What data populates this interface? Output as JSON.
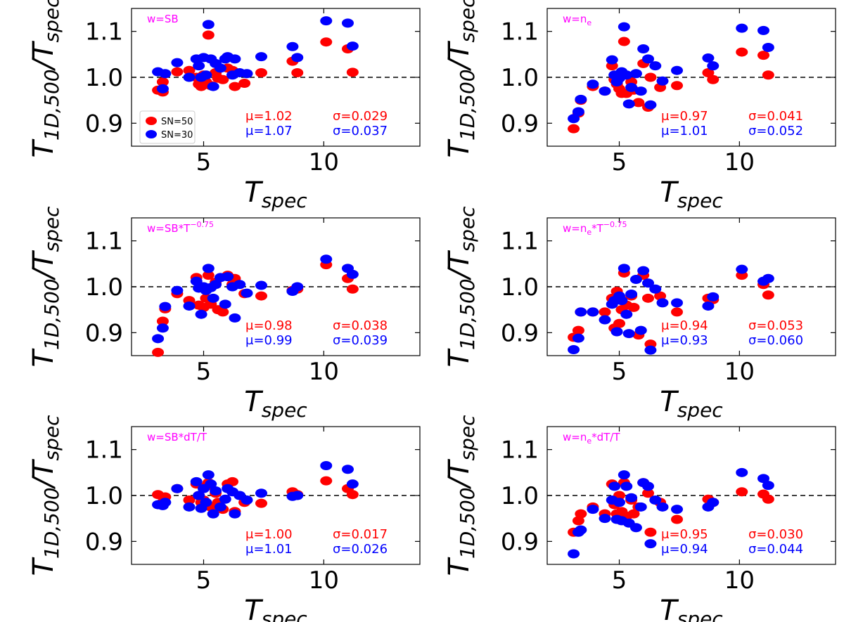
{
  "figure": {
    "xlabel_main": "T",
    "xlabel_sub": "spec",
    "ylabel_main": "T",
    "ylabel_sub1": "1D,500",
    "ylabel_slash": "/T",
    "ylabel_sub2": "spec"
  },
  "legend": {
    "entries": [
      {
        "label": "SN=50",
        "color": "#ff0000"
      },
      {
        "label": "SN=30",
        "color": "#0000ff"
      }
    ]
  },
  "colors": {
    "sn50": "#ff0000",
    "sn30": "#0000ff",
    "weight": "#ff00ff",
    "reference_line": "#000000"
  },
  "chart_data": [
    {
      "type": "scatter",
      "weight_main": "w=SB",
      "weight_sup": "",
      "weight_tail": "",
      "xlim": [
        2,
        14
      ],
      "ylim": [
        0.85,
        1.15
      ],
      "xticks": [
        5,
        10
      ],
      "xtick_labels": [
        "5",
        "10"
      ],
      "yticks": [
        0.9,
        1.0,
        1.1
      ],
      "ytick_labels": [
        "0.9",
        "1.0",
        "1.1"
      ],
      "reference_y": 1.0,
      "stats": {
        "sn50": {
          "mu": "μ=1.02",
          "sigma": "σ=0.029"
        },
        "sn30": {
          "mu": "μ=1.07",
          "sigma": "σ=0.037"
        }
      },
      "has_legend": true,
      "series": [
        {
          "name": "SN=50",
          "x": [
            3.1,
            3.3,
            3.3,
            3.9,
            4.4,
            4.7,
            4.8,
            4.9,
            5.0,
            5.1,
            5.2,
            5.3,
            5.5,
            5.6,
            5.8,
            6.0,
            6.2,
            6.3,
            6.7,
            7.4,
            8.7,
            8.9,
            10.1,
            11.0,
            11.2
          ],
          "y": [
            0.972,
            0.968,
            0.99,
            1.012,
            1.015,
            1.0,
            0.985,
            0.98,
            1.005,
            0.99,
            1.092,
            0.982,
            1.01,
            0.998,
            0.995,
            1.02,
            1.015,
            0.98,
            0.987,
            1.01,
            1.035,
            1.01,
            1.077,
            1.062,
            1.011
          ]
        },
        {
          "name": "SN=30",
          "x": [
            3.1,
            3.3,
            3.4,
            3.9,
            4.4,
            4.7,
            4.8,
            4.9,
            5.0,
            5.1,
            5.2,
            5.3,
            5.4,
            5.5,
            5.7,
            5.9,
            6.0,
            6.2,
            6.3,
            6.5,
            6.8,
            7.4,
            8.7,
            8.9,
            10.1,
            11.0,
            11.2
          ],
          "y": [
            1.012,
            0.975,
            1.008,
            1.032,
            1.0,
            1.04,
            1.025,
            1.0,
            1.043,
            1.005,
            1.115,
            1.04,
            0.98,
            1.03,
            1.02,
            1.04,
            1.045,
            1.005,
            1.04,
            1.01,
            1.008,
            1.045,
            1.067,
            1.043,
            1.123,
            1.118,
            1.068
          ]
        }
      ]
    },
    {
      "type": "scatter",
      "weight_main": "w=n",
      "weight_sub": "e",
      "weight_sup": "",
      "weight_tail": "",
      "xlim": [
        2,
        14
      ],
      "ylim": [
        0.85,
        1.15
      ],
      "xticks": [
        5,
        10
      ],
      "xtick_labels": [
        "5",
        "10"
      ],
      "yticks": [
        0.9,
        1.0,
        1.1
      ],
      "ytick_labels": [
        "0.9",
        "1.0",
        "1.1"
      ],
      "reference_y": 1.0,
      "stats": {
        "sn50": {
          "mu": "μ=0.97",
          "sigma": "σ=0.041"
        },
        "sn30": {
          "mu": "μ=1.01",
          "sigma": "σ=0.052"
        }
      },
      "has_legend": false,
      "series": [
        {
          "name": "SN=50",
          "x": [
            3.1,
            3.3,
            3.4,
            3.9,
            4.4,
            4.7,
            4.8,
            4.9,
            5.0,
            5.1,
            5.2,
            5.3,
            5.5,
            5.6,
            5.8,
            6.0,
            6.2,
            6.3,
            6.7,
            7.4,
            8.7,
            8.9,
            10.1,
            11.0,
            11.2
          ],
          "y": [
            0.888,
            0.922,
            0.95,
            0.98,
            0.97,
            1.025,
            0.995,
            0.985,
            0.975,
            0.965,
            1.078,
            0.965,
            0.99,
            0.972,
            0.945,
            1.03,
            0.935,
            1.0,
            0.978,
            0.982,
            1.01,
            0.995,
            1.055,
            1.048,
            1.005
          ]
        },
        {
          "name": "SN=30",
          "x": [
            3.1,
            3.3,
            3.4,
            3.9,
            4.4,
            4.7,
            4.8,
            4.9,
            5.0,
            5.1,
            5.2,
            5.3,
            5.4,
            5.5,
            5.7,
            5.9,
            6.0,
            6.2,
            6.3,
            6.5,
            6.8,
            7.4,
            8.7,
            8.9,
            10.1,
            11.0,
            11.2
          ],
          "y": [
            0.91,
            0.925,
            0.952,
            0.985,
            0.97,
            1.038,
            1.005,
            0.99,
            0.998,
            1.012,
            1.11,
            1.005,
            0.942,
            0.978,
            1.008,
            0.97,
            1.062,
            1.04,
            0.94,
            1.025,
            0.992,
            1.015,
            1.042,
            1.025,
            1.107,
            1.102,
            1.065
          ]
        }
      ]
    },
    {
      "type": "scatter",
      "weight_main": "w=SB*T",
      "weight_sup": "−0.75",
      "weight_tail": "",
      "xlim": [
        2,
        14
      ],
      "ylim": [
        0.85,
        1.15
      ],
      "xticks": [
        5,
        10
      ],
      "xtick_labels": [
        "5",
        "10"
      ],
      "yticks": [
        0.9,
        1.0,
        1.1
      ],
      "ytick_labels": [
        "0.9",
        "1.0",
        "1.1"
      ],
      "reference_y": 1.0,
      "stats": {
        "sn50": {
          "mu": "μ=0.98",
          "sigma": "σ=0.038"
        },
        "sn30": {
          "mu": "μ=0.99",
          "sigma": "σ=0.039"
        }
      },
      "has_legend": false,
      "series": [
        {
          "name": "SN=50",
          "x": [
            3.1,
            3.3,
            3.4,
            3.9,
            4.4,
            4.7,
            4.8,
            4.9,
            5.0,
            5.1,
            5.2,
            5.3,
            5.5,
            5.6,
            5.8,
            6.0,
            6.2,
            6.3,
            6.7,
            7.4,
            8.7,
            8.9,
            10.1,
            11.0,
            11.2
          ],
          "y": [
            0.857,
            0.925,
            0.952,
            0.985,
            0.97,
            1.02,
            0.96,
            1.0,
            0.955,
            0.975,
            1.025,
            0.962,
            1.01,
            0.95,
            0.945,
            1.025,
            1.005,
            1.018,
            0.985,
            0.98,
            0.992,
            0.995,
            1.048,
            1.018,
            0.995
          ]
        },
        {
          "name": "SN=30",
          "x": [
            3.1,
            3.3,
            3.4,
            3.9,
            4.4,
            4.7,
            4.8,
            4.9,
            5.0,
            5.1,
            5.2,
            5.3,
            5.4,
            5.5,
            5.7,
            5.9,
            6.0,
            6.2,
            6.3,
            6.5,
            6.8,
            7.4,
            8.7,
            8.9,
            10.1,
            11.0,
            11.2
          ],
          "y": [
            0.887,
            0.91,
            0.957,
            0.992,
            0.958,
            1.012,
            0.997,
            0.94,
            1.0,
            0.992,
            1.04,
            0.998,
            0.975,
            1.005,
            1.02,
            0.962,
            1.022,
            1.0,
            0.932,
            1.005,
            0.986,
            1.003,
            0.99,
            1.0,
            1.06,
            1.04,
            1.027
          ]
        }
      ]
    },
    {
      "type": "scatter",
      "weight_main": "w=n",
      "weight_sub": "e",
      "weight_sup": "−0.75",
      "weight_tail": "*T",
      "xlim": [
        2,
        14
      ],
      "ylim": [
        0.85,
        1.15
      ],
      "xticks": [
        5,
        10
      ],
      "xtick_labels": [
        "5",
        "10"
      ],
      "yticks": [
        0.9,
        1.0,
        1.1
      ],
      "ytick_labels": [
        "0.9",
        "1.0",
        "1.1"
      ],
      "reference_y": 1.0,
      "stats": {
        "sn50": {
          "mu": "μ=0.94",
          "sigma": "σ=0.053"
        },
        "sn30": {
          "mu": "μ=0.93",
          "sigma": "σ=0.060"
        }
      },
      "has_legend": false,
      "series": [
        {
          "name": "SN=50",
          "x": [
            3.1,
            3.3,
            3.4,
            3.9,
            4.4,
            4.7,
            4.8,
            4.9,
            5.0,
            5.1,
            5.2,
            5.3,
            5.5,
            5.6,
            5.8,
            6.0,
            6.2,
            6.3,
            6.7,
            7.4,
            8.7,
            8.9,
            10.1,
            11.0,
            11.2
          ],
          "y": [
            0.89,
            0.905,
            0.945,
            0.945,
            0.945,
            0.975,
            0.91,
            0.99,
            0.92,
            0.95,
            1.03,
            0.96,
            0.98,
            0.955,
            0.895,
            1.025,
            0.975,
            0.875,
            0.98,
            0.945,
            0.975,
            0.972,
            1.025,
            1.005,
            0.982
          ]
        },
        {
          "name": "SN=30",
          "x": [
            3.1,
            3.3,
            3.4,
            3.9,
            4.4,
            4.7,
            4.8,
            4.9,
            5.0,
            5.1,
            5.2,
            5.3,
            5.4,
            5.5,
            5.7,
            5.9,
            6.0,
            6.2,
            6.3,
            6.5,
            6.8,
            7.4,
            8.7,
            8.9,
            10.1,
            11.0,
            11.2
          ],
          "y": [
            0.863,
            0.888,
            0.945,
            0.945,
            0.928,
            0.962,
            0.97,
            0.902,
            0.98,
            0.97,
            1.04,
            0.94,
            0.898,
            0.984,
            1.016,
            0.905,
            1.035,
            1.008,
            0.862,
            0.995,
            0.965,
            0.965,
            0.958,
            0.978,
            1.038,
            1.012,
            1.018
          ]
        }
      ]
    },
    {
      "type": "scatter",
      "weight_main": "w=SB*dT/T",
      "weight_sup": "",
      "weight_tail": "",
      "xlim": [
        2,
        14
      ],
      "ylim": [
        0.85,
        1.15
      ],
      "xticks": [
        5,
        10
      ],
      "xtick_labels": [
        "5",
        "10"
      ],
      "yticks": [
        0.9,
        1.0,
        1.1
      ],
      "ytick_labels": [
        "0.9",
        "1.0",
        "1.1"
      ],
      "reference_y": 1.0,
      "stats": {
        "sn50": {
          "mu": "μ=1.00",
          "sigma": "σ=0.017"
        },
        "sn30": {
          "mu": "μ=1.01",
          "sigma": "σ=0.026"
        }
      },
      "has_legend": false,
      "series": [
        {
          "name": "SN=50",
          "x": [
            3.1,
            3.3,
            3.4,
            3.9,
            4.4,
            4.7,
            4.8,
            4.9,
            5.0,
            5.1,
            5.2,
            5.3,
            5.5,
            5.6,
            5.8,
            6.0,
            6.2,
            6.3,
            6.7,
            7.4,
            8.7,
            8.9,
            10.1,
            11.0,
            11.2
          ],
          "y": [
            1.002,
            0.985,
            0.997,
            1.015,
            0.99,
            1.025,
            1.0,
            0.985,
            0.99,
            1.02,
            1.028,
            0.975,
            1.005,
            0.985,
            0.97,
            1.025,
            1.03,
            0.965,
            0.985,
            0.983,
            1.008,
            1.002,
            1.032,
            1.015,
            1.002
          ]
        },
        {
          "name": "SN=30",
          "x": [
            3.1,
            3.3,
            3.4,
            3.9,
            4.4,
            4.7,
            4.8,
            4.9,
            5.0,
            5.1,
            5.2,
            5.3,
            5.4,
            5.5,
            5.7,
            5.9,
            6.0,
            6.2,
            6.3,
            6.5,
            6.8,
            7.4,
            8.7,
            8.9,
            10.1,
            11.0,
            11.2
          ],
          "y": [
            0.98,
            0.978,
            0.985,
            1.015,
            0.975,
            1.03,
            1.0,
            0.972,
            1.015,
            0.985,
            1.045,
            1.025,
            0.96,
            1.01,
            0.975,
            0.992,
            1.015,
            1.008,
            0.96,
            1.0,
            0.99,
            1.005,
            0.998,
            1.0,
            1.065,
            1.057,
            1.025
          ]
        }
      ]
    },
    {
      "type": "scatter",
      "weight_main": "w=n",
      "weight_sub": "e",
      "weight_sup": "",
      "weight_tail": "*dT/T",
      "xlim": [
        2,
        14
      ],
      "ylim": [
        0.85,
        1.15
      ],
      "xticks": [
        5,
        10
      ],
      "xtick_labels": [
        "5",
        "10"
      ],
      "yticks": [
        0.9,
        1.0,
        1.1
      ],
      "ytick_labels": [
        "0.9",
        "1.0",
        "1.1"
      ],
      "reference_y": 1.0,
      "stats": {
        "sn50": {
          "mu": "μ=0.95",
          "sigma": "σ=0.030"
        },
        "sn30": {
          "mu": "μ=0.94",
          "sigma": "σ=0.044"
        }
      },
      "has_legend": false,
      "series": [
        {
          "name": "SN=50",
          "x": [
            3.1,
            3.3,
            3.4,
            3.9,
            4.4,
            4.7,
            4.8,
            4.9,
            5.0,
            5.1,
            5.2,
            5.3,
            5.5,
            5.6,
            5.8,
            6.0,
            6.2,
            6.3,
            6.7,
            7.4,
            8.7,
            8.9,
            10.1,
            11.0,
            11.2
          ],
          "y": [
            0.92,
            0.945,
            0.96,
            0.975,
            0.96,
            1.025,
            0.98,
            0.96,
            1.0,
            0.965,
            1.028,
            0.955,
            0.99,
            0.96,
            0.975,
            1.028,
            1.005,
            0.92,
            0.985,
            0.948,
            0.992,
            0.985,
            1.008,
            1.003,
            0.992
          ]
        },
        {
          "name": "SN=30",
          "x": [
            3.1,
            3.3,
            3.4,
            3.9,
            4.4,
            4.7,
            4.8,
            4.9,
            5.0,
            5.1,
            5.2,
            5.3,
            5.4,
            5.5,
            5.7,
            5.9,
            6.0,
            6.2,
            6.3,
            6.5,
            6.8,
            7.4,
            8.7,
            8.9,
            10.1,
            11.0,
            11.2
          ],
          "y": [
            0.873,
            0.92,
            0.925,
            0.97,
            0.95,
            0.99,
            1.02,
            0.948,
            0.985,
            0.945,
            1.045,
            1.02,
            0.94,
            0.995,
            0.93,
            0.975,
            1.028,
            1.02,
            0.895,
            0.99,
            0.975,
            0.97,
            0.975,
            0.985,
            1.05,
            1.037,
            1.022
          ]
        }
      ]
    }
  ]
}
